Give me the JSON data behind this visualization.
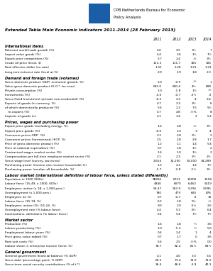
{
  "title": "Extended Table Main Economic Indicators 2011-2014 (28 February 2013)",
  "header_logo_text": "CPB Netherlands Bureau for Economic\nPolicy Analysis",
  "columns": [
    "2011",
    "2012",
    "2013",
    "2014"
  ],
  "sections": [
    {
      "name": "International items",
      "rows": [
        [
          "Relevant world trade growth (%)",
          "4.0",
          "2.5",
          "3½",
          "7"
        ],
        [
          "Import value goods (%)",
          "4.4",
          "2.6",
          "1½",
          "7½"
        ],
        [
          "Export price competitors (%)",
          "5.7",
          "2.4",
          "-½",
          "3½"
        ],
        [
          "Crude oil price (level, $)",
          "111.3",
          "111.7",
          "105",
          "106"
        ],
        [
          "Real effective dollar (ex-rate)",
          "1.32",
          "1.28",
          "1.21",
          "1.31"
        ],
        [
          "Long-term interest rate (level at %)",
          "2.9",
          "1.9",
          "1.8",
          "2.3"
        ]
      ]
    },
    {
      "name": "Demand and foreign trade (volumes)",
      "rows": [
        [
          "Gross domestic product (GDP, economic growth, %)",
          "1.0",
          "-0.9",
          "-½",
          "1"
        ],
        [
          "Value gross domestic product (G.O.*, bn euro)",
          "602.0",
          "600.4",
          "4½",
          "608"
        ],
        [
          "Private consumption (%)",
          "1.0",
          "-1.8",
          "1½",
          "-½"
        ],
        [
          "Investments (%)",
          "-4.0",
          "-0.7",
          "-3½",
          "-3"
        ],
        [
          "Gross Fixed Investment (private non-residential) (%)",
          "-6.2",
          "2.3",
          "4",
          "2.4"
        ],
        [
          "Exports of goods (in currency, %)",
          "4.7",
          "2.3",
          "3½",
          "6"
        ],
        [
          "of which domestically produced (%)",
          "5.6",
          "2.3",
          "7.5",
          "5½"
        ],
        [
          "   re-exports (%)",
          "4.7",
          "4.8",
          "-½%",
          "8"
        ],
        [
          "Imports of goods (v.)",
          "4.1",
          "3.4",
          "2",
          "5.2"
        ]
      ]
    },
    {
      "name": "Prices, wages and purchasing power",
      "rows": [
        [
          "Export price goods (excluding energy, %)",
          "1.6",
          "2.8",
          "-½",
          "3½"
        ],
        [
          "Import price goods (%)",
          "-0.0",
          "1.9",
          "3",
          "4"
        ],
        [
          "Consumer prices GDP  (%)",
          "2.3",
          "2.8",
          "2½",
          "2"
        ],
        [
          "Consumer prices (harmonised, HICP, %)",
          "2.5",
          "2.8",
          "2.8",
          "1.7"
        ],
        [
          "Price of gross domestic product (%)",
          "1.2",
          "1.1",
          "1.4",
          "5.4"
        ],
        [
          "Price of national expenditure (%)",
          "0.7",
          "1.8",
          "1½",
          "2"
        ],
        [
          "Contractual wages market sector (%)",
          "1.4",
          "1.0",
          "1½",
          "2"
        ],
        [
          "Compensation per full-time employee market sector (%)",
          "2.1",
          "2.3",
          "2½",
          "2½"
        ],
        [
          "Gross wage level (survey, pw-euros)",
          "2,654",
          "32,200",
          "33,000",
          "34,289"
        ],
        [
          "Purchasing power (income one income household, %)",
          "1.2",
          "2.3",
          "1.4",
          "7½"
        ],
        [
          "Purchasing power (median all households, %)",
          "-1.7",
          "-2.8",
          "-1½",
          "3½"
        ]
      ]
    },
    {
      "name": "Labour market (international definition of labour force, unless stated differently)",
      "rows": [
        [
          "Population in 1000 (000s)",
          "98282",
          "6751",
          "13000",
          "1318"
        ],
        [
          "Labour force (15-49, x 1000, 000s)",
          "4940",
          "6070",
          "6,462",
          "9419"
        ],
        [
          "Employees: active (x 1B, x 1,000 pers.)",
          "50.47",
          "503.9",
          "5,296",
          "9,095"
        ],
        [
          "Unemployment (x 1,000 pers.)",
          "780",
          "479",
          "600",
          "876"
        ],
        [
          "Employees (in %)",
          "0.7",
          "-0.7",
          "-3",
          "10"
        ],
        [
          "Labour force (15-74, %)",
          "6.2",
          "1.8",
          "5½",
          "-½"
        ],
        [
          "Employees: active (%) (15-24, %)",
          "9.0",
          "2.0",
          "-5½",
          "2.6"
        ],
        [
          "Unemployment rate (% labour force)",
          "4.4",
          "5.3",
          "6½",
          "6.4"
        ],
        [
          "Inactivations, definitions (% labour force)",
          "6.4",
          "5.4",
          "7½",
          "7½"
        ]
      ]
    },
    {
      "name": "Market sector",
      "rows": [
        [
          "Production (%)",
          "1.6",
          "1.8",
          "½",
          "3.6"
        ],
        [
          "Labour productivity (%)",
          "1.0",
          "-1.4",
          "½",
          "5.0"
        ],
        [
          "Employment labour years (%)",
          "0.4",
          "2.4",
          "1",
          "4"
        ],
        [
          "Price gross value added (%)",
          "0.7",
          "1.7",
          "0",
          "3.6"
        ],
        [
          "Real unit costs (%)",
          "5.6",
          "2.5",
          "-½%",
          "0.0"
        ],
        [
          "Labour share in enterprise income (level, %)",
          "78.7",
          "82.4",
          "81½",
          "83½"
        ]
      ]
    },
    {
      "name": "General government",
      "rows": [
        [
          "General government financial balance (% GDP)",
          "4.1",
          "4.0",
          "3.3",
          "3.4"
        ],
        [
          "Gross debt (percentage point, % GDP)",
          "60.5",
          "71.4",
          "74.0",
          "73.0"
        ],
        [
          "Gross-term social security contributions (% of t.*)",
          "36.4",
          "46.6",
          "-3.9",
          "40.1"
        ]
      ]
    }
  ],
  "logo_color": "#1a5ea8",
  "text_color": "#000000",
  "header_color": "#333333"
}
